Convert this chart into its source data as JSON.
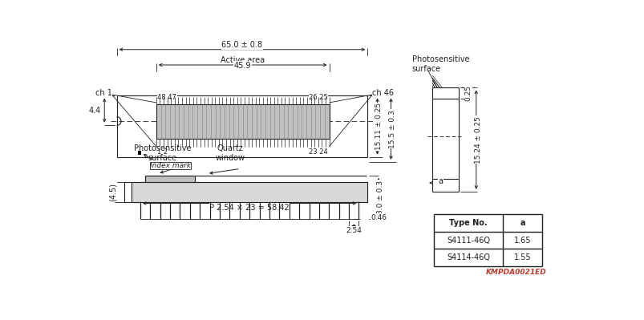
{
  "bg_color": "#ffffff",
  "text_color": "#231f20",
  "line_color": "#231f20",
  "title_text": "KMPDA0021ED",
  "table": {
    "header": [
      "Type No.",
      "a"
    ],
    "rows": [
      [
        "S4111-46Q",
        "1.65"
      ],
      [
        "S4114-46Q",
        "1.55"
      ]
    ]
  }
}
